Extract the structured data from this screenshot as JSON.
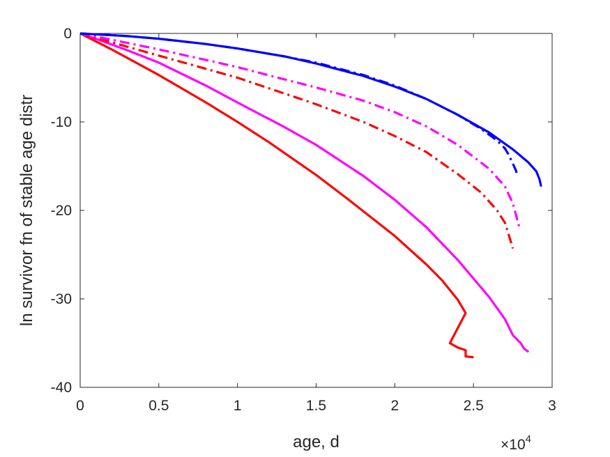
{
  "chart_data": {
    "type": "line",
    "title": "",
    "xlabel": "age, d",
    "ylabel": "ln survivor fn of stable age distr",
    "x_multiplier": {
      "base": "×10",
      "exponent": "4"
    },
    "xlim": [
      0,
      3
    ],
    "ylim": [
      -40,
      0
    ],
    "xticks": [
      0,
      0.5,
      1,
      1.5,
      2,
      2.5,
      3
    ],
    "xtick_labels": [
      "0",
      "0.5",
      "1",
      "1.5",
      "2",
      "2.5",
      "3"
    ],
    "yticks": [
      0,
      -10,
      -20,
      -30,
      -40
    ],
    "ytick_labels": [
      "0",
      "-10",
      "-20",
      "-30",
      "-40"
    ],
    "grid": false,
    "box": true,
    "series": [
      {
        "color": "#ff0000",
        "style": "solid",
        "points": [
          [
            0,
            0
          ],
          [
            0.2,
            -1.8
          ],
          [
            0.5,
            -4.7
          ],
          [
            0.8,
            -7.8
          ],
          [
            1.0,
            -10.0
          ],
          [
            1.2,
            -12.3
          ],
          [
            1.5,
            -16.0
          ],
          [
            1.7,
            -18.7
          ],
          [
            2.0,
            -22.9
          ],
          [
            2.2,
            -26.1
          ],
          [
            2.3,
            -27.9
          ],
          [
            2.4,
            -30.1
          ],
          [
            2.45,
            -31.6
          ],
          [
            2.35,
            -35.0
          ],
          [
            2.4,
            -35.5
          ],
          [
            2.45,
            -35.8
          ],
          [
            2.45,
            -36.5
          ],
          [
            2.5,
            -36.6
          ]
        ]
      },
      {
        "color": "#ff00ff",
        "style": "solid",
        "points": [
          [
            0,
            0
          ],
          [
            0.1,
            -0.6
          ],
          [
            0.3,
            -1.9
          ],
          [
            0.5,
            -3.3
          ],
          [
            0.8,
            -5.9
          ],
          [
            1.0,
            -7.8
          ],
          [
            1.3,
            -10.6
          ],
          [
            1.5,
            -12.6
          ],
          [
            1.8,
            -16.1
          ],
          [
            2.0,
            -18.8
          ],
          [
            2.2,
            -21.9
          ],
          [
            2.4,
            -25.6
          ],
          [
            2.6,
            -29.8
          ],
          [
            2.7,
            -32.3
          ],
          [
            2.75,
            -34.1
          ],
          [
            2.8,
            -35.0
          ],
          [
            2.82,
            -35.6
          ],
          [
            2.85,
            -36.0
          ]
        ]
      },
      {
        "color": "#ff0000",
        "style": "dashdot",
        "points": [
          [
            0,
            0
          ],
          [
            0.2,
            -1.0
          ],
          [
            0.5,
            -2.5
          ],
          [
            0.8,
            -4.0
          ],
          [
            1.0,
            -5.0
          ],
          [
            1.3,
            -6.8
          ],
          [
            1.5,
            -8.0
          ],
          [
            1.8,
            -10.0
          ],
          [
            2.0,
            -11.6
          ],
          [
            2.2,
            -13.4
          ],
          [
            2.4,
            -15.9
          ],
          [
            2.55,
            -18.0
          ],
          [
            2.65,
            -20.0
          ],
          [
            2.7,
            -21.4
          ],
          [
            2.72,
            -22.5
          ],
          [
            2.74,
            -23.7
          ],
          [
            2.75,
            -24.3
          ]
        ]
      },
      {
        "color": "#ff00ff",
        "style": "dashdot",
        "points": [
          [
            0,
            0
          ],
          [
            0.2,
            -0.7
          ],
          [
            0.5,
            -1.8
          ],
          [
            0.8,
            -3.0
          ],
          [
            1.0,
            -3.8
          ],
          [
            1.3,
            -5.2
          ],
          [
            1.5,
            -6.1
          ],
          [
            1.8,
            -7.6
          ],
          [
            2.0,
            -8.9
          ],
          [
            2.2,
            -10.5
          ],
          [
            2.4,
            -12.6
          ],
          [
            2.6,
            -15.3
          ],
          [
            2.7,
            -17.3
          ],
          [
            2.75,
            -19.2
          ],
          [
            2.77,
            -20.5
          ],
          [
            2.79,
            -21.8
          ]
        ]
      },
      {
        "color": "#0000ff",
        "style": "dashdot",
        "points": [
          [
            0,
            0
          ],
          [
            0.3,
            -0.3
          ],
          [
            0.5,
            -0.6
          ],
          [
            0.8,
            -1.2
          ],
          [
            1.0,
            -1.7
          ],
          [
            1.3,
            -2.6
          ],
          [
            1.5,
            -3.3
          ],
          [
            1.8,
            -4.7
          ],
          [
            2.0,
            -5.9
          ],
          [
            2.2,
            -7.4
          ],
          [
            2.4,
            -9.2
          ],
          [
            2.55,
            -10.8
          ],
          [
            2.65,
            -12.1
          ],
          [
            2.7,
            -13.0
          ],
          [
            2.72,
            -13.6
          ],
          [
            2.75,
            -14.7
          ],
          [
            2.77,
            -15.5
          ],
          [
            2.78,
            -16.2
          ]
        ]
      },
      {
        "color": "#0000ff",
        "style": "solid",
        "points": [
          [
            0,
            0
          ],
          [
            0.3,
            -0.3
          ],
          [
            0.5,
            -0.6
          ],
          [
            0.8,
            -1.2
          ],
          [
            1.0,
            -1.7
          ],
          [
            1.3,
            -2.6
          ],
          [
            1.5,
            -3.4
          ],
          [
            1.8,
            -4.8
          ],
          [
            2.0,
            -6.0
          ],
          [
            2.2,
            -7.4
          ],
          [
            2.4,
            -9.2
          ],
          [
            2.6,
            -11.2
          ],
          [
            2.75,
            -13.1
          ],
          [
            2.85,
            -14.6
          ],
          [
            2.9,
            -15.6
          ],
          [
            2.92,
            -16.5
          ],
          [
            2.93,
            -17.3
          ]
        ]
      }
    ]
  }
}
